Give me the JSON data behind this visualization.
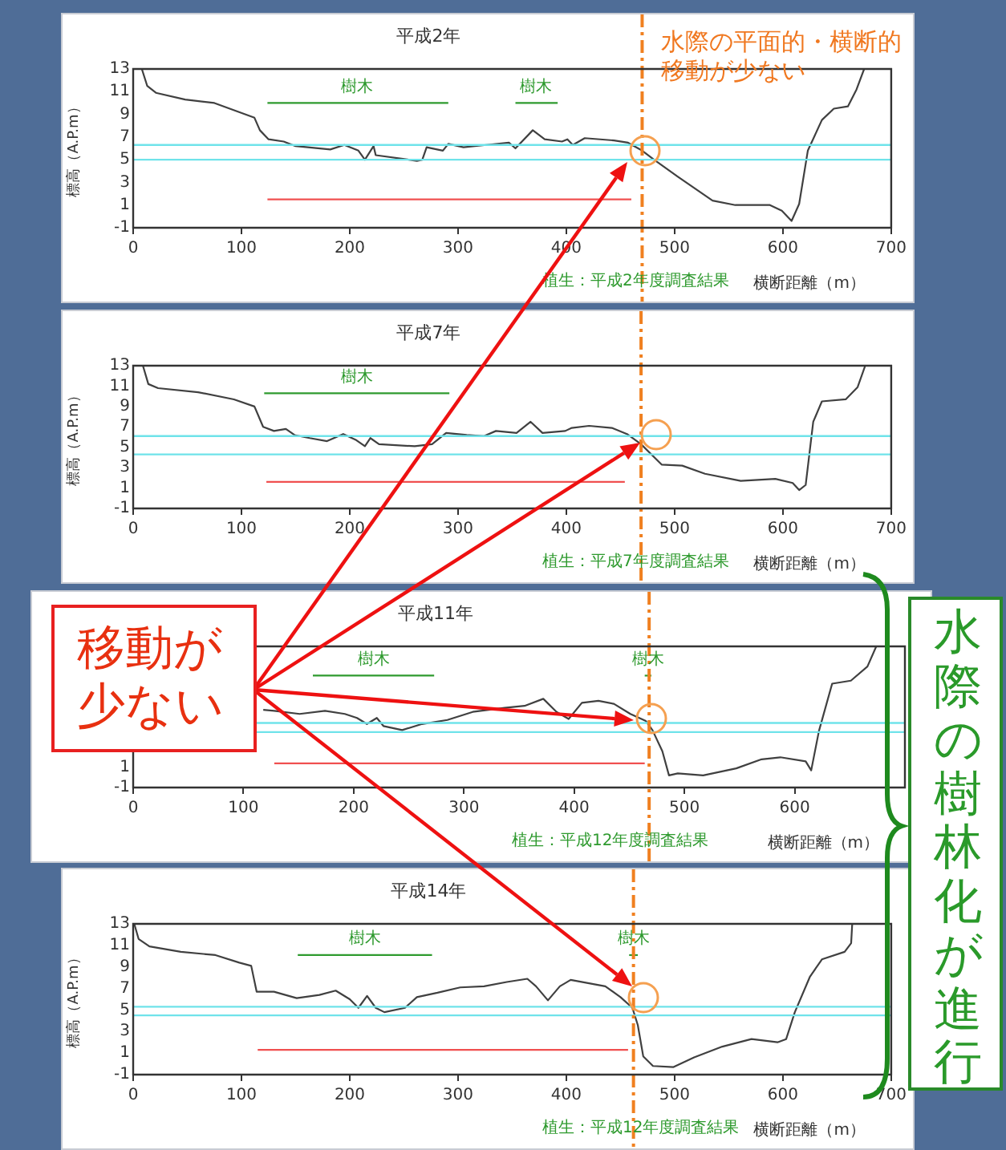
{
  "chart_data": [
    {
      "type": "line",
      "title": "平成2年",
      "xlabel": "横断距離（m）",
      "ylabel": "標高（A.P.m）",
      "xlim": [
        0,
        700
      ],
      "xticks": [
        0,
        100,
        200,
        300,
        400,
        500,
        600,
        700
      ],
      "ylim": [
        -1,
        13
      ],
      "yticks": [
        -1,
        1,
        3,
        5,
        7,
        9,
        11,
        13
      ],
      "series": [
        {
          "color": "#404040",
          "marker": "none",
          "x": [
            8,
            13,
            21,
            48,
            75,
            112,
            117,
            125,
            139,
            150,
            182,
            195,
            208,
            214,
            222,
            224,
            262,
            267,
            271,
            286,
            291,
            305,
            326,
            347,
            353,
            369,
            380,
            396,
            401,
            406,
            417,
            444,
            457,
            470,
            481,
            503,
            535,
            556,
            588,
            599,
            608,
            615,
            623,
            636,
            647,
            660,
            668,
            675
          ],
          "values": [
            13,
            11.5,
            10.9,
            10.3,
            10.0,
            8.7,
            7.6,
            6.8,
            6.6,
            6.2,
            5.9,
            6.3,
            5.8,
            5.0,
            6.2,
            5.4,
            4.9,
            5.0,
            6.1,
            5.8,
            6.4,
            6.1,
            6.3,
            6.5,
            6.0,
            7.6,
            6.8,
            6.6,
            6.8,
            6.3,
            6.9,
            6.7,
            6.5,
            5.8,
            5.0,
            3.5,
            1.4,
            1.0,
            1.0,
            0.5,
            -0.4,
            1.1,
            5.8,
            8.5,
            9.5,
            9.7,
            11.2,
            13
          ]
        },
        {
          "color": "#2e9a2e",
          "x": [
            124,
            291
          ],
          "values": [
            10,
            10
          ]
        },
        {
          "color": "#2e9a2e",
          "x": [
            353,
            392
          ],
          "values": [
            10,
            10
          ]
        },
        {
          "color": "#f05050",
          "x": [
            124,
            460
          ],
          "values": [
            1.5,
            1.5
          ]
        }
      ],
      "ref_lines": [
        {
          "axis": "y",
          "value": 6.3,
          "color": "#6fe3ea"
        },
        {
          "axis": "y",
          "value": 5.0,
          "color": "#6fe3ea"
        },
        {
          "axis": "x",
          "value": 470,
          "color": "#f08020",
          "line_style": "dashed"
        }
      ],
      "annotations": [
        {
          "text": "樹木",
          "x": 207,
          "y": 10
        },
        {
          "text": "樹木",
          "x": 372,
          "y": 10
        },
        "水際の平面的・横断的移動が少ない",
        "植生：平成2年度調査結果"
      ]
    },
    {
      "type": "line",
      "title": "平成7年",
      "xlabel": "横断距離（m）",
      "ylabel": "標高（A.P.m）",
      "xlim": [
        0,
        700
      ],
      "xticks": [
        0,
        100,
        200,
        300,
        400,
        500,
        600,
        700
      ],
      "ylim": [
        -1,
        13
      ],
      "yticks": [
        -1,
        1,
        3,
        5,
        7,
        9,
        11,
        13
      ],
      "series": [
        {
          "color": "#404040",
          "marker": "none",
          "x": [
            9,
            14,
            23,
            60,
            93,
            112,
            120,
            130,
            141,
            149,
            163,
            179,
            194,
            206,
            214,
            219,
            227,
            260,
            276,
            289,
            308,
            324,
            335,
            354,
            367,
            378,
            399,
            405,
            421,
            442,
            456,
            469,
            488,
            507,
            528,
            561,
            593,
            609,
            615,
            621,
            628,
            636,
            658,
            669,
            676
          ],
          "values": [
            13,
            11.2,
            10.8,
            10.4,
            9.7,
            9.0,
            7.0,
            6.6,
            6.8,
            6.2,
            5.9,
            5.6,
            6.3,
            5.7,
            5.1,
            5.9,
            5.3,
            5.1,
            5.3,
            6.4,
            6.2,
            6.1,
            6.6,
            6.4,
            7.5,
            6.4,
            6.6,
            6.9,
            7.1,
            6.9,
            6.3,
            5.3,
            3.3,
            3.2,
            2.4,
            1.7,
            1.9,
            1.5,
            0.8,
            1.3,
            7.5,
            9.5,
            9.7,
            10.9,
            13
          ]
        },
        {
          "color": "#2e9a2e",
          "x": [
            121,
            292
          ],
          "values": [
            10.3,
            10.3
          ]
        },
        {
          "color": "#f05050",
          "x": [
            123,
            454
          ],
          "values": [
            1.6,
            1.6
          ]
        }
      ],
      "ref_lines": [
        {
          "axis": "y",
          "value": 6.1,
          "color": "#6fe3ea"
        },
        {
          "axis": "y",
          "value": 4.3,
          "color": "#6fe3ea"
        },
        {
          "axis": "x",
          "value": 469,
          "color": "#f08020",
          "line_style": "dashed"
        }
      ],
      "annotations": [
        {
          "text": "樹木",
          "x": 207,
          "y": 10.3
        },
        "植生：平成7年度調査結果"
      ]
    },
    {
      "type": "line",
      "title": "平成11年",
      "xlabel": "横断距離（m）",
      "xlim": [
        0,
        700
      ],
      "xticks": [
        0,
        100,
        200,
        300,
        400,
        500,
        600
      ],
      "ylim": [
        -1,
        13
      ],
      "yticks": [
        -1,
        1
      ],
      "series": [
        {
          "color": "#404040",
          "marker": "none",
          "x": [
            118,
            128,
            151,
            174,
            192,
            203,
            212,
            221,
            227,
            244,
            262,
            285,
            308,
            337,
            355,
            372,
            384,
            395,
            407,
            422,
            436,
            451,
            459,
            465,
            471,
            480,
            486,
            494,
            517,
            547,
            570,
            587,
            610,
            615,
            622,
            634,
            651,
            666,
            674
          ],
          "values": [
            6.7,
            6.6,
            6.3,
            6.6,
            6.3,
            5.9,
            5.3,
            5.9,
            5.1,
            4.7,
            5.3,
            5.7,
            6.5,
            6.9,
            7.1,
            7.8,
            6.5,
            5.8,
            7.4,
            7.6,
            7.3,
            6.3,
            5.9,
            5.6,
            4.7,
            2.6,
            0.2,
            0.4,
            0.2,
            0.9,
            1.8,
            2.0,
            1.6,
            0.7,
            4.6,
            9.3,
            9.6,
            11.0,
            13
          ]
        },
        {
          "color": "#2e9a2e",
          "x": [
            163,
            273
          ],
          "values": [
            10.1,
            10.1
          ]
        },
        {
          "color": "#2e9a2e",
          "x": [
            464,
            470
          ],
          "values": [
            10.1,
            10.1
          ]
        },
        {
          "color": "#f05050",
          "x": [
            128,
            464
          ],
          "values": [
            1.4,
            1.4
          ]
        }
      ],
      "ref_lines": [
        {
          "axis": "y",
          "value": 5.4,
          "color": "#6fe3ea"
        },
        {
          "axis": "y",
          "value": 4.5,
          "color": "#6fe3ea"
        },
        {
          "axis": "x",
          "value": 468,
          "color": "#f08020",
          "line_style": "dashed"
        }
      ],
      "annotations": [
        {
          "text": "樹木",
          "x": 218,
          "y": 10.1
        },
        {
          "text": "樹木",
          "x": 467,
          "y": 10.1
        },
        "植生：平成12年度調査結果",
        "移動が少ない",
        "水際の樹林化が進行"
      ]
    },
    {
      "type": "line",
      "title": "平成14年",
      "xlabel": "横断距離（m）",
      "ylabel": "標高（A.P.m）",
      "xlim": [
        0,
        700
      ],
      "xticks": [
        0,
        100,
        200,
        300,
        400,
        500,
        600,
        700
      ],
      "ylim": [
        -1,
        13
      ],
      "yticks": [
        -1,
        1,
        3,
        5,
        7,
        9,
        11,
        13
      ],
      "series": [
        {
          "color": "#404040",
          "marker": "none",
          "x": [
            1,
            5,
            15,
            44,
            76,
            98,
            109,
            114,
            130,
            151,
            172,
            187,
            200,
            208,
            216,
            224,
            232,
            251,
            262,
            281,
            302,
            324,
            345,
            364,
            372,
            383,
            394,
            404,
            420,
            436,
            450,
            461,
            466,
            471,
            480,
            499,
            518,
            544,
            571,
            595,
            603,
            611,
            625,
            636,
            657,
            663,
            664
          ],
          "values": [
            13,
            11.6,
            10.9,
            10.4,
            10.1,
            9.4,
            9.1,
            6.7,
            6.7,
            6.1,
            6.4,
            6.8,
            6.0,
            5.2,
            6.3,
            5.2,
            4.8,
            5.2,
            6.2,
            6.6,
            7.1,
            7.2,
            7.6,
            7.9,
            7.2,
            5.9,
            7.2,
            7.8,
            7.5,
            7.2,
            6.2,
            5.2,
            3.6,
            0.7,
            -0.2,
            -0.3,
            0.6,
            1.6,
            2.3,
            2.0,
            2.3,
            4.8,
            8.1,
            9.7,
            10.4,
            11.2,
            13
          ]
        },
        {
          "color": "#2e9a2e",
          "x": [
            152,
            276
          ],
          "values": [
            10.1,
            10.1
          ]
        },
        {
          "color": "#2e9a2e",
          "x": [
            458,
            466
          ],
          "values": [
            10.1,
            10.1
          ]
        },
        {
          "color": "#f05050",
          "x": [
            115,
            457
          ],
          "values": [
            1.3,
            1.3
          ]
        }
      ],
      "ref_lines": [
        {
          "axis": "y",
          "value": 5.3,
          "color": "#6fe3ea"
        },
        {
          "axis": "y",
          "value": 4.5,
          "color": "#6fe3ea"
        },
        {
          "axis": "x",
          "value": 462,
          "color": "#f08020",
          "line_style": "dashed"
        }
      ],
      "annotations": [
        {
          "text": "樹木",
          "x": 214,
          "y": 10.1
        },
        {
          "text": "樹木",
          "x": 462,
          "y": 10.1
        },
        "植生：平成12年度調査結果"
      ]
    }
  ]
}
